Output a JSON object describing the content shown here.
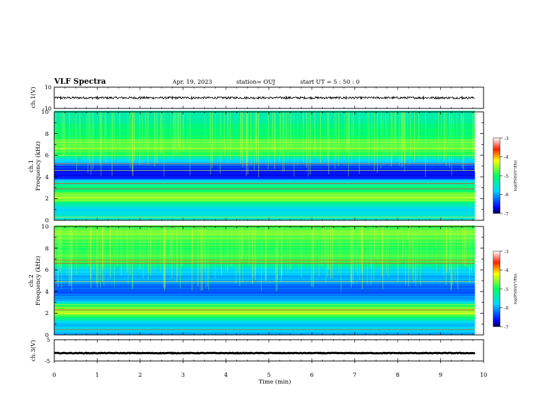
{
  "header": {
    "title": "VLF Spectra",
    "date": "Apr. 19, 2023",
    "station": "station= OUJ",
    "start": "start  UT =   5  : 50 : 0"
  },
  "chart_data": [
    {
      "panel": "ch1-waveform",
      "type": "line",
      "ylabel": "ch.1(V)",
      "ylim": [
        -10,
        10
      ],
      "yticks": [
        "10",
        "-10"
      ],
      "xlim": [
        0,
        10
      ],
      "trace_center_volts": 0,
      "trace_range_volts": [
        -1,
        1
      ],
      "spikes_at_min": [
        0.15,
        1.0,
        2.0,
        2.75,
        3.2,
        5.4,
        6.8,
        8.6,
        9.5
      ]
    },
    {
      "panel": "ch1-spectrogram",
      "type": "heatmap",
      "ylabel_line1": "ch.1",
      "ylabel_line2": "Frequency (kHz)",
      "ylim": [
        0,
        10
      ],
      "yticks": [
        "0",
        "2",
        "4",
        "6",
        "8",
        "10"
      ],
      "xlim": [
        0,
        9.8
      ],
      "colorbar": {
        "label": "log(PSD)(V²/Hz)",
        "range": [
          -7,
          -3
        ],
        "ticks": [
          "-3",
          "-4",
          "-5",
          "-6",
          "-7"
        ]
      },
      "profile_khz_logpsd": [
        [
          0.0,
          -5.5
        ],
        [
          0.5,
          -5.6
        ],
        [
          1.0,
          -5.8
        ],
        [
          1.6,
          -5.2
        ],
        [
          2.0,
          -4.4
        ],
        [
          2.3,
          -4.6
        ],
        [
          3.0,
          -5.2
        ],
        [
          3.5,
          -5.4
        ],
        [
          4.0,
          -6.8
        ],
        [
          4.5,
          -6.6
        ],
        [
          5.0,
          -6.4
        ],
        [
          6.0,
          -5.0
        ],
        [
          6.8,
          -4.6
        ],
        [
          8.0,
          -5.1
        ],
        [
          10.0,
          -5.4
        ]
      ],
      "lines_khz": [
        0.3,
        1.8,
        2.1,
        2.9,
        3.4,
        4.6,
        5.2,
        6.0,
        6.6,
        7.2,
        7.4
      ]
    },
    {
      "panel": "ch2-spectrogram",
      "type": "heatmap",
      "ylabel_line1": "ch.2",
      "ylabel_line2": "Frequency (kHz)",
      "ylim": [
        0,
        10
      ],
      "yticks": [
        "0",
        "2",
        "4",
        "6",
        "8",
        "10"
      ],
      "xlim": [
        0,
        9.8
      ],
      "colorbar": {
        "label": "log(PSD)(V²/Hz)",
        "range": [
          -7,
          -3
        ],
        "ticks": [
          "-3",
          "-4",
          "-5",
          "-6",
          "-7"
        ]
      },
      "profile_khz_logpsd": [
        [
          0.0,
          -6.0
        ],
        [
          0.5,
          -5.6
        ],
        [
          1.0,
          -6.0
        ],
        [
          2.0,
          -4.4
        ],
        [
          2.6,
          -4.7
        ],
        [
          3.2,
          -6.0
        ],
        [
          4.0,
          -6.4
        ],
        [
          5.0,
          -6.0
        ],
        [
          6.0,
          -5.8
        ],
        [
          6.8,
          -4.7
        ],
        [
          8.0,
          -4.9
        ],
        [
          9.5,
          -4.6
        ],
        [
          10.0,
          -4.8
        ]
      ],
      "lines_khz": [
        0.5,
        2.0,
        2.3,
        2.8,
        4.9,
        6.6,
        6.9,
        9.3
      ]
    },
    {
      "panel": "ch3-waveform",
      "type": "line",
      "ylabel": "ch.3(V)",
      "ylim": [
        -5,
        5
      ],
      "yticks": [
        "5",
        "-5"
      ],
      "xlim": [
        0,
        10
      ],
      "trace_center_volts": -1.3,
      "trace_range_volts": [
        -1.6,
        -1.0
      ]
    },
    {
      "panel": "time-axis",
      "xlabel": "Time (min)",
      "xlim": [
        0,
        10
      ],
      "xticks": [
        "0",
        "1",
        "2",
        "3",
        "4",
        "5",
        "6",
        "7",
        "8",
        "9",
        "10"
      ]
    }
  ]
}
